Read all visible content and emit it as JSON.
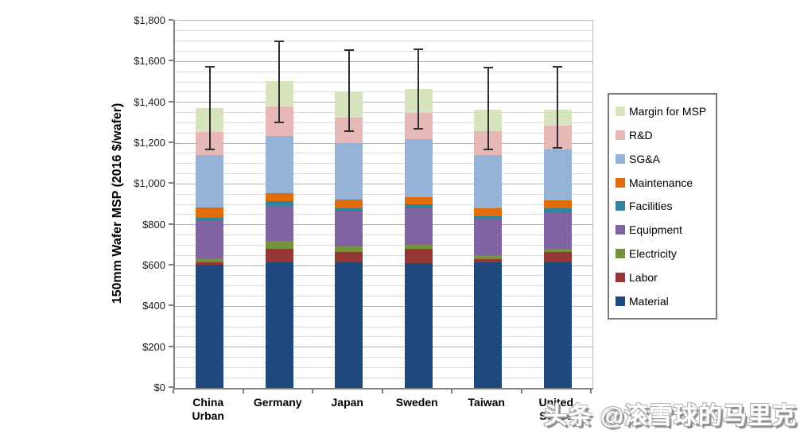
{
  "watermark": "头条 @滚雪球的马里克",
  "chart_data": {
    "type": "bar",
    "stacked": true,
    "title": "",
    "xlabel": "",
    "ylabel": "150mm Wafer MSP (2016 $/wafer)",
    "ylim": [
      0,
      1800
    ],
    "ytick_step": 200,
    "gridline_step": 50,
    "grid": true,
    "legend_position": "right",
    "yticklabels": [
      "$0",
      "$200",
      "$400",
      "$600",
      "$800",
      "$1,000",
      "$1,200",
      "$1,400",
      "$1,600",
      "$1,800"
    ],
    "categories": [
      "China Urban",
      "Germany",
      "Japan",
      "Sweden",
      "Taiwan",
      "United States"
    ],
    "category_lines": [
      [
        "China",
        "Urban"
      ],
      [
        "Germany"
      ],
      [
        "Japan"
      ],
      [
        "Sweden"
      ],
      [
        "Taiwan"
      ],
      [
        "United",
        "States"
      ]
    ],
    "series": [
      {
        "name": "Material",
        "color": "#1F497D",
        "values": [
          605,
          615,
          615,
          610,
          615,
          615
        ]
      },
      {
        "name": "Labor",
        "color": "#953735",
        "values": [
          10,
          65,
          50,
          70,
          15,
          50
        ]
      },
      {
        "name": "Electricity",
        "color": "#76923C",
        "values": [
          20,
          40,
          30,
          20,
          20,
          15
        ]
      },
      {
        "name": "Equipment",
        "color": "#8064A2",
        "values": [
          185,
          170,
          170,
          180,
          175,
          180
        ]
      },
      {
        "name": "Facilities",
        "color": "#31849B",
        "values": [
          15,
          25,
          15,
          20,
          15,
          20
        ]
      },
      {
        "name": "Maintenance",
        "color": "#E36C0A",
        "values": [
          50,
          40,
          45,
          35,
          40,
          40
        ]
      },
      {
        "name": "SG&A",
        "color": "#95B3D7",
        "values": [
          255,
          280,
          275,
          285,
          260,
          250
        ]
      },
      {
        "name": "R&D",
        "color": "#E6B9B8",
        "values": [
          115,
          145,
          125,
          130,
          120,
          115
        ]
      },
      {
        "name": "Margin for MSP",
        "color": "#D7E4BD",
        "values": [
          115,
          125,
          130,
          115,
          105,
          80
        ]
      }
    ],
    "totals": [
      1370,
      1505,
      1455,
      1465,
      1365,
      1365
    ],
    "error_bars": {
      "low": [
        1170,
        1300,
        1260,
        1270,
        1170,
        1175
      ],
      "high": [
        1575,
        1700,
        1655,
        1660,
        1570,
        1575
      ]
    },
    "legend_order_top_to_bottom": [
      "Margin for MSP",
      "R&D",
      "SG&A",
      "Maintenance",
      "Facilities",
      "Equipment",
      "Electricity",
      "Labor",
      "Material"
    ]
  }
}
